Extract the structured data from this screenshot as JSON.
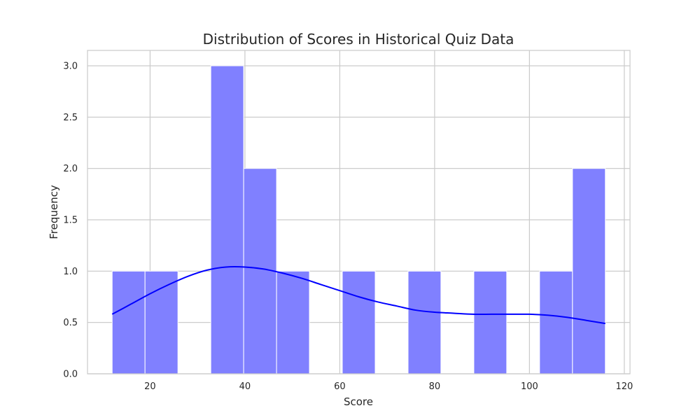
{
  "chart_data": {
    "type": "bar",
    "title": "Distribution of Scores in Historical Quiz Data",
    "xlabel": "Score",
    "ylabel": "Frequency",
    "xlim": [
      6.8,
      121.2
    ],
    "ylim": [
      0,
      3.15
    ],
    "x_ticks": [
      20,
      40,
      60,
      80,
      100,
      120
    ],
    "x_tick_labels": [
      "20",
      "40",
      "60",
      "80",
      "100",
      "120"
    ],
    "y_ticks": [
      0.0,
      0.5,
      1.0,
      1.5,
      2.0,
      2.5,
      3.0
    ],
    "y_tick_labels": [
      "0.0",
      "0.5",
      "1.0",
      "1.5",
      "2.0",
      "2.5",
      "3.0"
    ],
    "grid": true,
    "bin_width": 6.93,
    "bins": [
      {
        "start": 12.0,
        "end": 18.93,
        "count": 1
      },
      {
        "start": 18.93,
        "end": 25.87,
        "count": 1
      },
      {
        "start": 25.87,
        "end": 32.8,
        "count": 0
      },
      {
        "start": 32.8,
        "end": 39.73,
        "count": 3
      },
      {
        "start": 39.73,
        "end": 46.67,
        "count": 2
      },
      {
        "start": 46.67,
        "end": 53.6,
        "count": 1
      },
      {
        "start": 53.6,
        "end": 60.53,
        "count": 0
      },
      {
        "start": 60.53,
        "end": 67.47,
        "count": 1
      },
      {
        "start": 67.47,
        "end": 74.4,
        "count": 0
      },
      {
        "start": 74.4,
        "end": 81.33,
        "count": 1
      },
      {
        "start": 81.33,
        "end": 88.27,
        "count": 0
      },
      {
        "start": 88.27,
        "end": 95.2,
        "count": 1
      },
      {
        "start": 95.2,
        "end": 102.13,
        "count": 0
      },
      {
        "start": 102.13,
        "end": 109.07,
        "count": 1
      },
      {
        "start": 109.07,
        "end": 116.0,
        "count": 2
      }
    ],
    "kde": {
      "x": [
        12,
        16,
        20,
        24,
        28,
        32,
        36,
        40,
        44,
        48,
        52,
        56,
        60,
        64,
        68,
        72,
        76,
        80,
        84,
        88,
        92,
        96,
        100,
        104,
        108,
        112,
        116
      ],
      "y": [
        0.58,
        0.68,
        0.78,
        0.87,
        0.95,
        1.01,
        1.04,
        1.04,
        1.02,
        0.98,
        0.93,
        0.87,
        0.81,
        0.75,
        0.7,
        0.66,
        0.62,
        0.6,
        0.59,
        0.58,
        0.58,
        0.58,
        0.58,
        0.57,
        0.55,
        0.52,
        0.49
      ]
    },
    "colors": {
      "bar_fill": "#8080ff",
      "bar_edge": "#ffffff",
      "kde_line": "#0000ff",
      "grid": "#cccccc",
      "spine": "#cccccc",
      "text": "#262626"
    }
  }
}
